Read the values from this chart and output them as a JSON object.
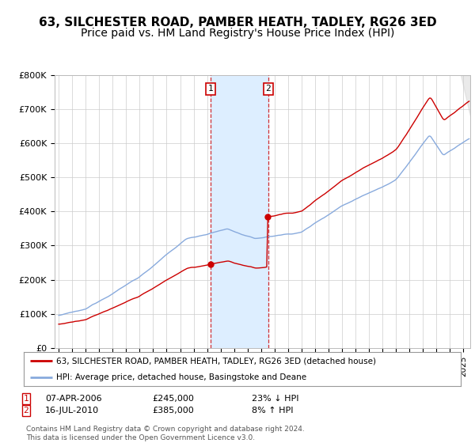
{
  "title1": "63, SILCHESTER ROAD, PAMBER HEATH, TADLEY, RG26 3ED",
  "title2": "Price paid vs. HM Land Registry's House Price Index (HPI)",
  "ylim": [
    0,
    800000
  ],
  "yticks": [
    0,
    100000,
    200000,
    300000,
    400000,
    500000,
    600000,
    700000,
    800000
  ],
  "ytick_labels": [
    "£0",
    "£100K",
    "£200K",
    "£300K",
    "£400K",
    "£500K",
    "£600K",
    "£700K",
    "£800K"
  ],
  "xlim_start": 1995,
  "xlim_end": 2025.5,
  "sale1_year": 2006.27,
  "sale1_price": 245000,
  "sale1_label": "07-APR-2006",
  "sale1_pct": "23% ↓ HPI",
  "sale2_year": 2010.54,
  "sale2_price": 385000,
  "sale2_label": "16-JUL-2010",
  "sale2_pct": "8% ↑ HPI",
  "property_color": "#cc0000",
  "hpi_color": "#88aadd",
  "highlight_color": "#ddeeff",
  "legend_label1": "63, SILCHESTER ROAD, PAMBER HEATH, TADLEY, RG26 3ED (detached house)",
  "legend_label2": "HPI: Average price, detached house, Basingstoke and Deane",
  "footer": "Contains HM Land Registry data © Crown copyright and database right 2024.\nThis data is licensed under the Open Government Licence v3.0.",
  "bg_color": "#ffffff",
  "grid_color": "#cccccc",
  "title_fontsize": 11,
  "subtitle_fontsize": 10,
  "tick_fontsize": 8,
  "legend_fontsize": 8,
  "table_fontsize": 8,
  "footer_fontsize": 6.5
}
